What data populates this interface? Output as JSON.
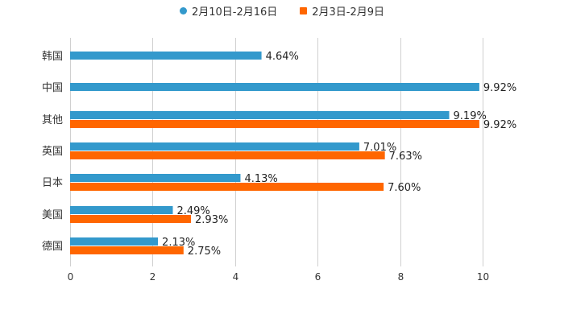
{
  "chart_data": {
    "type": "bar",
    "orientation": "horizontal",
    "categories": [
      "韩国",
      "中国",
      "其他",
      "英国",
      "日本",
      "美国",
      "德国"
    ],
    "series": [
      {
        "name": "2月10日-2月16日",
        "color": "#3399cc",
        "values": [
          4.64,
          9.92,
          9.19,
          7.01,
          4.13,
          2.49,
          2.13
        ],
        "labels": [
          "4.64%",
          "9.92%",
          "9.19%",
          "7.01%",
          "4.13%",
          "2.49%",
          "2.13%"
        ]
      },
      {
        "name": "2月3日-2月9日",
        "color": "#ff6600",
        "values": [
          null,
          null,
          9.92,
          7.63,
          7.6,
          2.93,
          2.75
        ],
        "labels": [
          "",
          "",
          "9.92%",
          "7.63%",
          "7.60%",
          "2.93%",
          "2.75%"
        ]
      }
    ],
    "xlim": [
      0,
      10
    ],
    "xticks": [
      "0",
      "2",
      "4",
      "6",
      "8",
      "10"
    ],
    "grid": true,
    "legend_position": "top-center",
    "title": "",
    "xlabel": "",
    "ylabel": ""
  }
}
